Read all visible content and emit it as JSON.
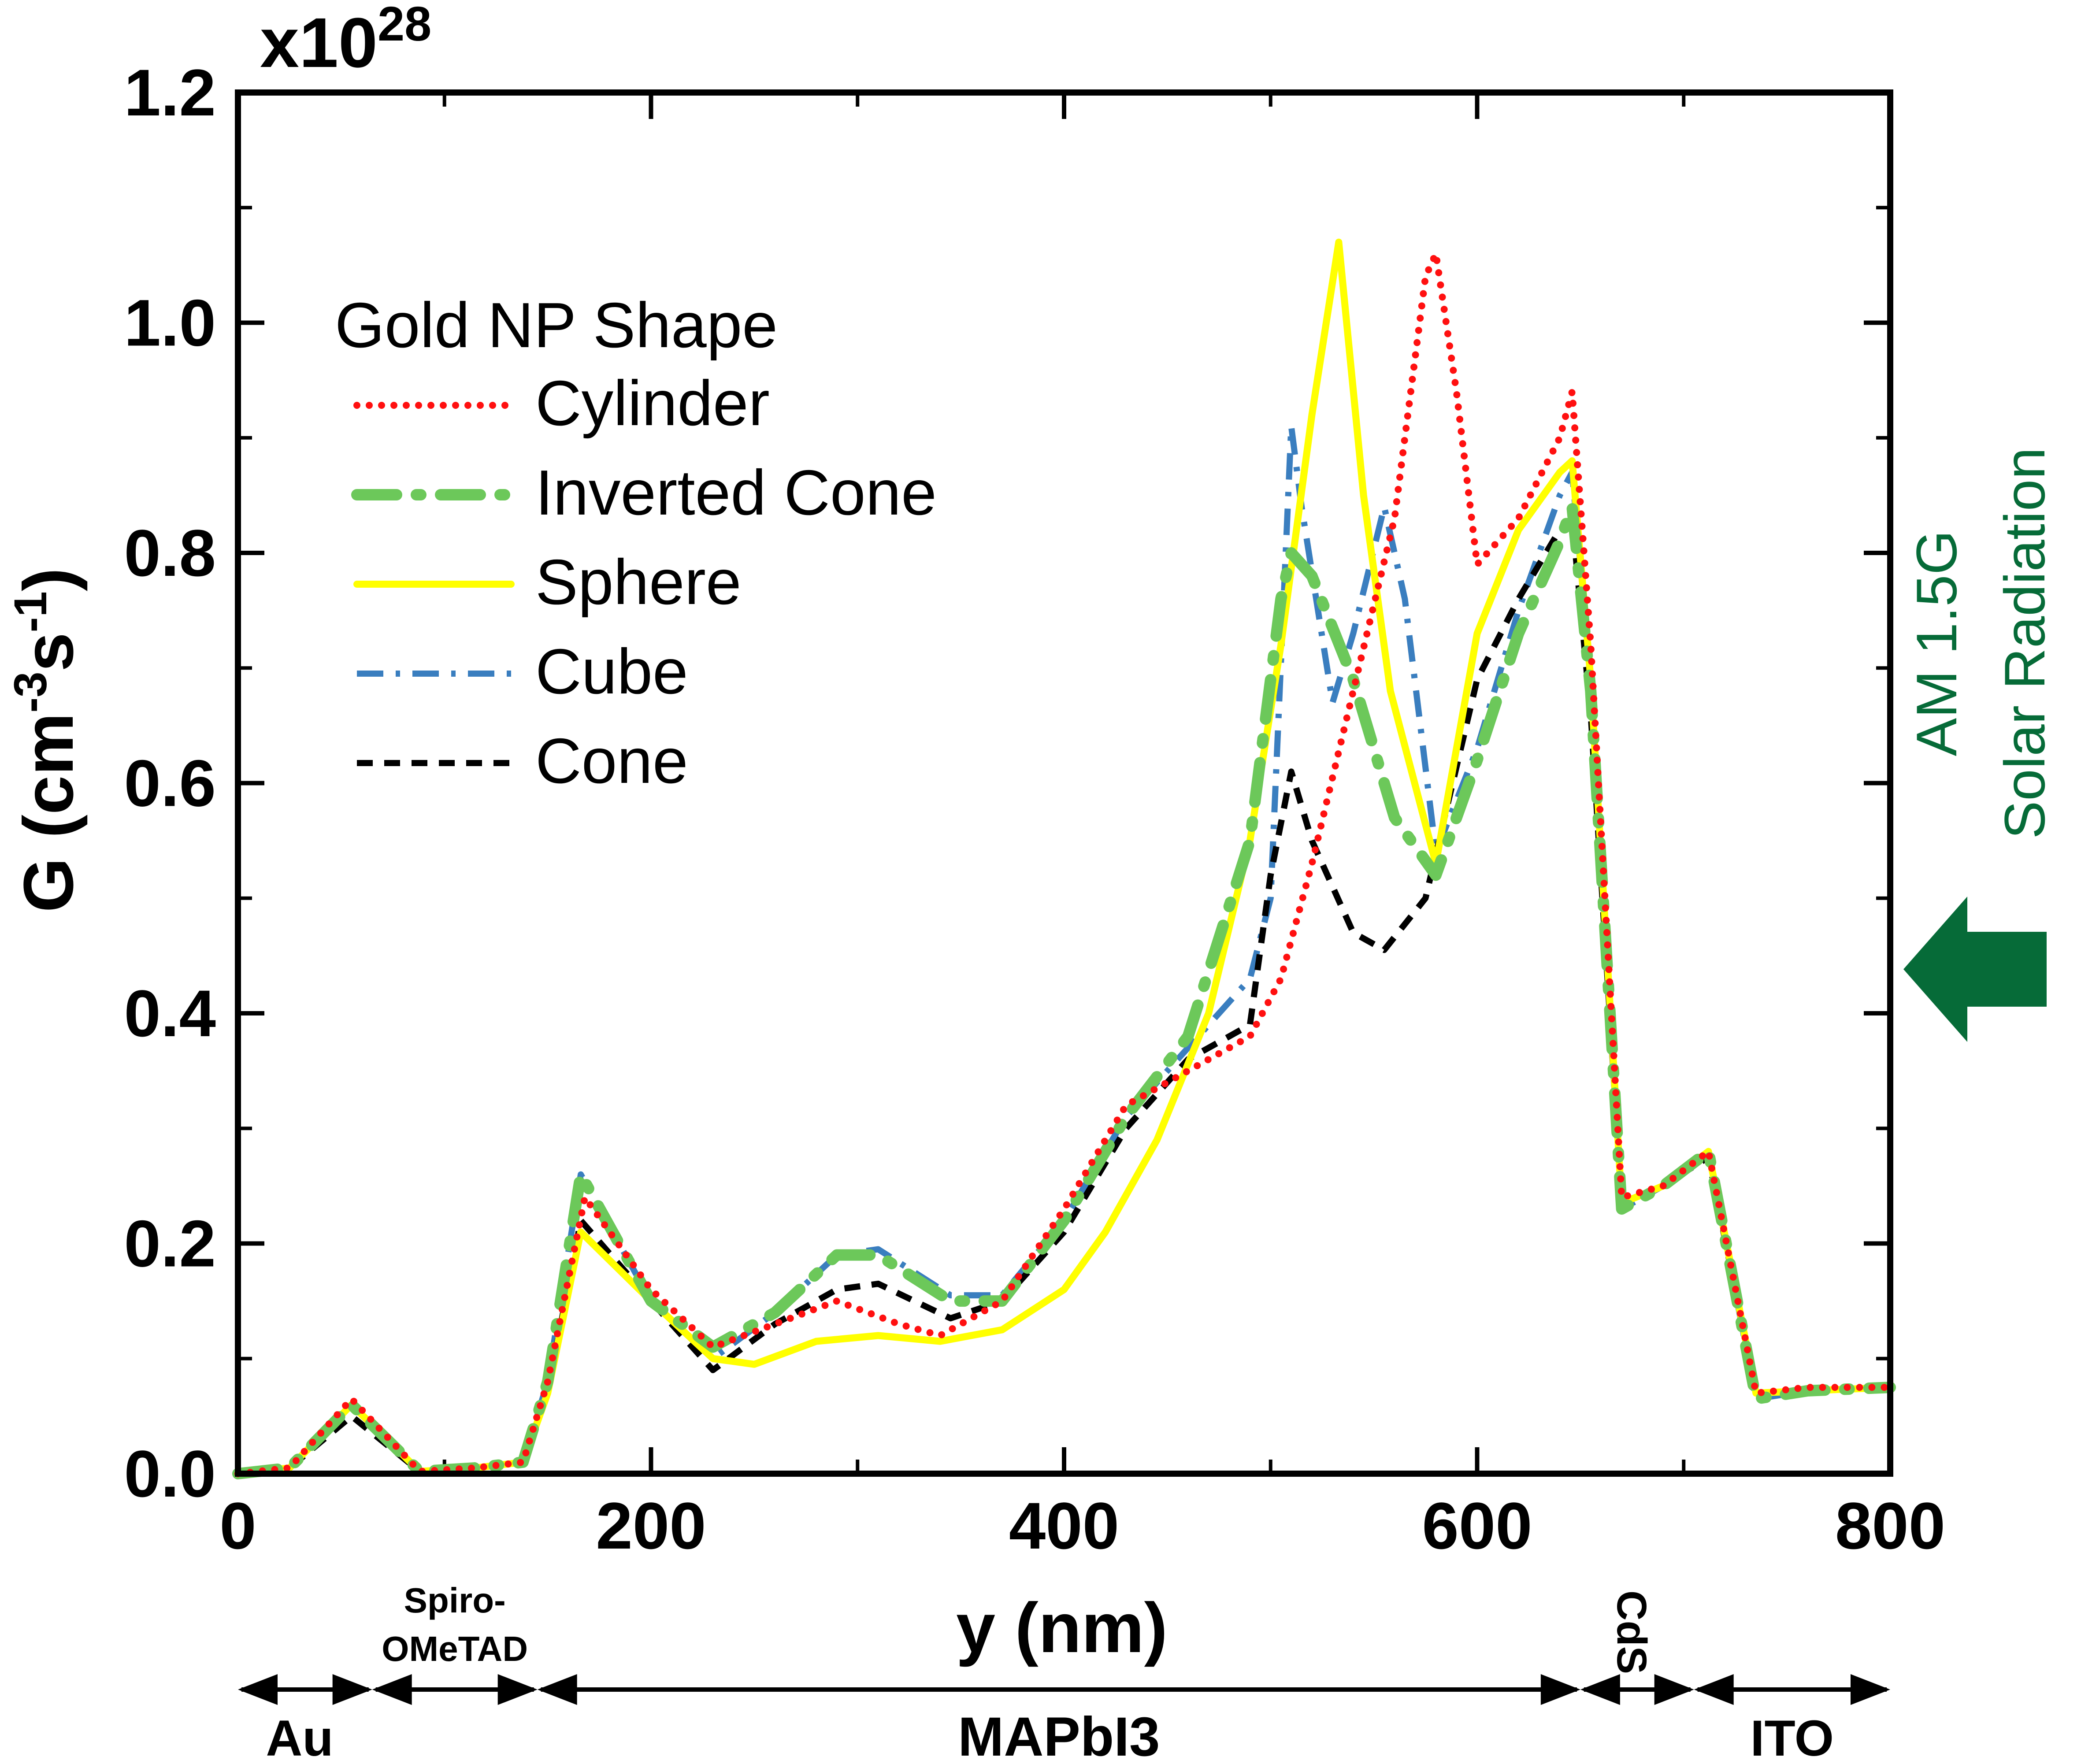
{
  "chart_data": {
    "type": "line",
    "title": "",
    "xlabel": "y (nm)",
    "ylabel_main": "G (cm",
    "ylabel_sup1": "-3",
    "ylabel_mid": "s",
    "ylabel_sup2": "-1",
    "ylabel_end": ")",
    "multiplier_base": "x10",
    "multiplier_exp": "28",
    "xlim": [
      0,
      800
    ],
    "ylim": [
      0,
      1.2
    ],
    "x_ticks": [
      0,
      200,
      400,
      600,
      800
    ],
    "x_tick_labels": [
      "0",
      "200",
      "400",
      "600",
      "800"
    ],
    "y_ticks": [
      0,
      0.2,
      0.4,
      0.6,
      0.8,
      1.0,
      1.2
    ],
    "y_tick_labels": [
      "0.0",
      "0.2",
      "0.4",
      "0.6",
      "0.8",
      "1.0",
      "1.2"
    ],
    "legend_title": "Gold NP Shape",
    "legend_position": "upper-left",
    "series": [
      {
        "name": "Cylinder",
        "color": "#ff1010",
        "style": "dotted",
        "x": [
          0,
          25,
          55,
          88,
          115,
          138,
          150,
          168,
          200,
          230,
          260,
          290,
          320,
          340,
          370,
          400,
          430,
          460,
          490,
          505,
          520,
          540,
          560,
          575,
          580,
          590,
          600,
          620,
          640,
          646,
          655,
          670,
          690,
          712,
          735,
          760,
          800
        ],
        "y": [
          0,
          0.005,
          0.065,
          0.002,
          0.005,
          0.01,
          0.08,
          0.24,
          0.16,
          0.11,
          0.13,
          0.15,
          0.13,
          0.12,
          0.15,
          0.23,
          0.32,
          0.35,
          0.38,
          0.43,
          0.53,
          0.68,
          0.83,
          1.04,
          1.06,
          0.94,
          0.79,
          0.83,
          0.9,
          0.94,
          0.72,
          0.24,
          0.25,
          0.28,
          0.07,
          0.075,
          0.075
        ]
      },
      {
        "name": "Inverted Cone",
        "color": "#6cc85a",
        "style": "dash-dot",
        "x": [
          0,
          25,
          55,
          88,
          115,
          138,
          150,
          166,
          200,
          230,
          260,
          290,
          310,
          345,
          370,
          400,
          430,
          460,
          490,
          505,
          510,
          520,
          540,
          560,
          580,
          600,
          620,
          640,
          646,
          655,
          670,
          690,
          712,
          735,
          760,
          800
        ],
        "y": [
          0,
          0.005,
          0.06,
          0.002,
          0.005,
          0.01,
          0.08,
          0.26,
          0.15,
          0.11,
          0.14,
          0.19,
          0.19,
          0.15,
          0.15,
          0.22,
          0.31,
          0.38,
          0.55,
          0.76,
          0.8,
          0.78,
          0.69,
          0.57,
          0.52,
          0.62,
          0.73,
          0.81,
          0.84,
          0.68,
          0.23,
          0.25,
          0.28,
          0.065,
          0.072,
          0.075
        ]
      },
      {
        "name": "Sphere",
        "color": "#ffff00",
        "style": "solid",
        "x": [
          0,
          25,
          55,
          88,
          115,
          138,
          150,
          166,
          200,
          230,
          250,
          280,
          310,
          340,
          370,
          400,
          420,
          445,
          470,
          490,
          505,
          520,
          533,
          545,
          558,
          580,
          600,
          620,
          640,
          646,
          655,
          670,
          690,
          712,
          735,
          760,
          800
        ],
        "y": [
          0,
          0.005,
          0.06,
          0.002,
          0.005,
          0.01,
          0.07,
          0.21,
          0.15,
          0.1,
          0.095,
          0.115,
          0.12,
          0.115,
          0.125,
          0.16,
          0.21,
          0.29,
          0.4,
          0.55,
          0.72,
          0.92,
          1.07,
          0.85,
          0.68,
          0.53,
          0.73,
          0.82,
          0.87,
          0.88,
          0.69,
          0.235,
          0.25,
          0.28,
          0.07,
          0.072,
          0.075
        ]
      },
      {
        "name": "Cube",
        "color": "#3a7ebf",
        "style": "dash-dot-fine",
        "x": [
          0,
          25,
          55,
          88,
          115,
          138,
          150,
          166,
          200,
          230,
          260,
          290,
          310,
          345,
          370,
          400,
          430,
          460,
          490,
          500,
          510,
          515,
          530,
          540,
          555,
          565,
          580,
          600,
          620,
          640,
          646,
          655,
          670,
          690,
          712,
          735,
          760,
          800
        ],
        "y": [
          0,
          0.005,
          0.06,
          0.002,
          0.005,
          0.01,
          0.08,
          0.26,
          0.15,
          0.1,
          0.14,
          0.19,
          0.195,
          0.155,
          0.155,
          0.22,
          0.31,
          0.37,
          0.43,
          0.5,
          0.91,
          0.84,
          0.67,
          0.73,
          0.84,
          0.76,
          0.54,
          0.63,
          0.75,
          0.85,
          0.87,
          0.69,
          0.23,
          0.25,
          0.28,
          0.065,
          0.072,
          0.075
        ]
      },
      {
        "name": "Cone",
        "color": "#000000",
        "style": "dashed",
        "x": [
          0,
          25,
          55,
          88,
          115,
          138,
          150,
          166,
          200,
          230,
          260,
          290,
          310,
          345,
          370,
          400,
          430,
          460,
          490,
          500,
          510,
          520,
          540,
          555,
          575,
          600,
          620,
          640,
          646,
          655,
          670,
          690,
          712,
          735,
          760,
          800
        ],
        "y": [
          0,
          0.005,
          0.05,
          0.002,
          0.005,
          0.01,
          0.07,
          0.22,
          0.15,
          0.09,
          0.13,
          0.16,
          0.165,
          0.135,
          0.15,
          0.21,
          0.3,
          0.36,
          0.39,
          0.52,
          0.61,
          0.55,
          0.47,
          0.455,
          0.5,
          0.69,
          0.76,
          0.82,
          0.83,
          0.66,
          0.235,
          0.25,
          0.275,
          0.07,
          0.072,
          0.075
        ]
      }
    ],
    "layers": [
      {
        "name": "Au",
        "from": 0,
        "to": 65
      },
      {
        "name": "Spiro-\nOMeTAD",
        "from": 65,
        "to": 145
      },
      {
        "name": "MAPbI3",
        "from": 145,
        "to": 650
      },
      {
        "name": "CdS",
        "from": 650,
        "to": 705
      },
      {
        "name": "ITO",
        "from": 705,
        "to": 800
      }
    ],
    "radiation_label_line1": "AM 1.5G",
    "radiation_label_line2": "Solar Radiation"
  }
}
